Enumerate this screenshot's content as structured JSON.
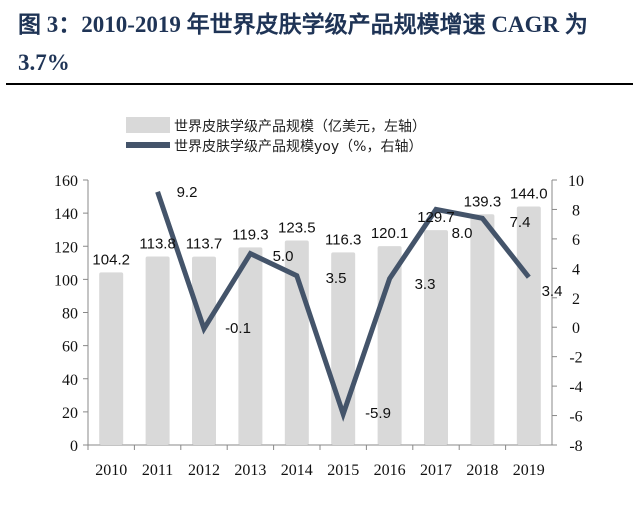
{
  "title": "图 3：2010-2019 年世界皮肤学级产品规模增速 CAGR 为 3.7%",
  "chart_data": {
    "type": "bar+line",
    "categories": [
      "2010",
      "2011",
      "2012",
      "2013",
      "2014",
      "2015",
      "2016",
      "2017",
      "2018",
      "2019"
    ],
    "series": [
      {
        "name": "世界皮肤学级产品规模（亿美元，左轴）",
        "type": "bar",
        "axis": "left",
        "color": "#d9d9d9",
        "values": [
          104.2,
          113.8,
          113.7,
          119.3,
          123.5,
          116.3,
          120.1,
          129.7,
          139.3,
          144.0
        ],
        "labels": [
          "104.2",
          "113.8",
          "113.7",
          "119.3",
          "123.5",
          "116.3",
          "120.1",
          "129.7",
          "139.3",
          "144.0"
        ]
      },
      {
        "name": "世界皮肤学级产品规模yoy（%，右轴）",
        "type": "line",
        "axis": "right",
        "color": "#44546a",
        "values": [
          null,
          9.2,
          -0.1,
          5.0,
          3.5,
          -5.9,
          3.3,
          8.0,
          7.4,
          3.4
        ],
        "labels": [
          "",
          "9.2",
          "-0.1",
          "5.0",
          "3.5",
          "-5.9",
          "3.3",
          "8.0",
          "7.4",
          "3.4"
        ]
      }
    ],
    "left_axis": {
      "range": [
        0,
        160
      ],
      "ticks": [
        "0",
        "20",
        "40",
        "60",
        "80",
        "100",
        "120",
        "140",
        "160"
      ]
    },
    "right_axis": {
      "range": [
        -8,
        10
      ],
      "ticks": [
        "-8",
        "-6",
        "-4",
        "-2",
        "0",
        "2",
        "4",
        "6",
        "8",
        "10"
      ]
    },
    "legend": "top"
  }
}
